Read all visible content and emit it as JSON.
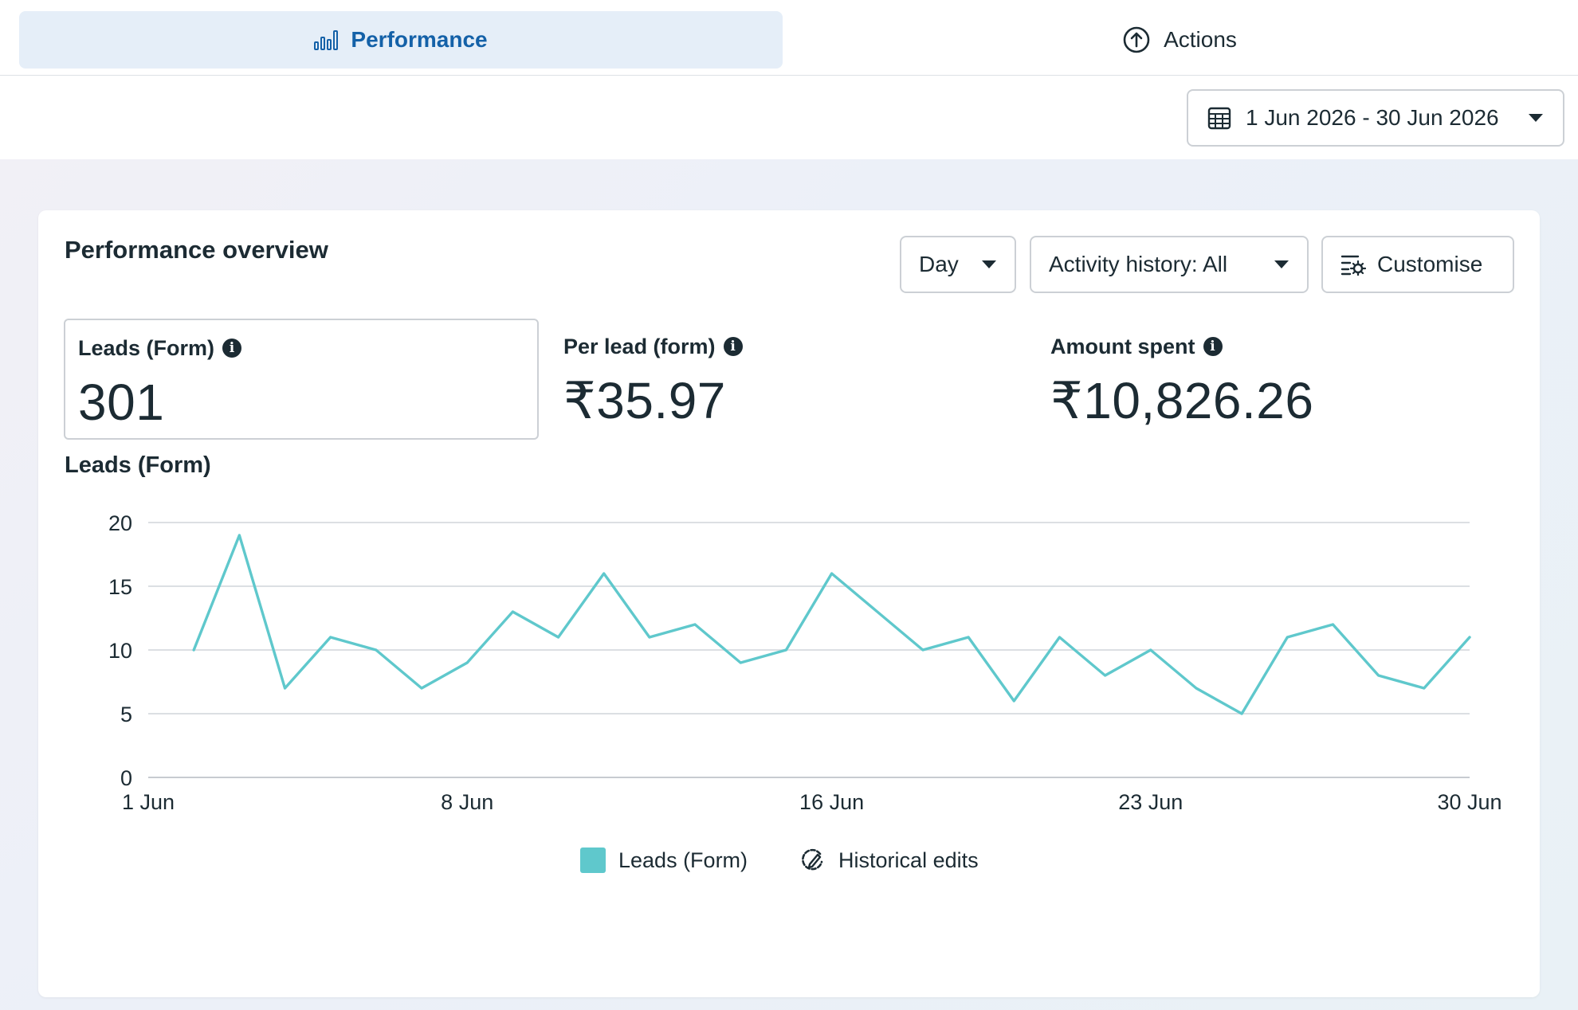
{
  "tabs": {
    "performance": "Performance",
    "actions": "Actions"
  },
  "date_range": {
    "label": "1 Jun 2026 - 30 Jun 2026"
  },
  "card": {
    "title": "Performance overview",
    "controls": {
      "day": "Day",
      "activity": "Activity history: All",
      "customise": "Customise"
    },
    "metrics": [
      {
        "label": "Leads (Form)",
        "value": "301"
      },
      {
        "label": "Per lead (form)",
        "value": "₹35.97"
      },
      {
        "label": "Amount spent",
        "value": "₹10,826.26"
      }
    ],
    "chart_title": "Leads (Form)",
    "legend": {
      "series": "Leads (Form)",
      "edits": "Historical edits"
    }
  },
  "colors": {
    "accent": "#1461a8",
    "active_tab_bg": "#e5eef8",
    "series": "#5fc8cc"
  },
  "chart_data": {
    "type": "line",
    "title": "Leads (Form)",
    "xlabel": "",
    "ylabel": "",
    "ylim": [
      0,
      20
    ],
    "yticks": [
      0,
      5,
      10,
      15,
      20
    ],
    "xticks": [
      {
        "day": 1,
        "label": "1 Jun"
      },
      {
        "day": 8,
        "label": "8 Jun"
      },
      {
        "day": 16,
        "label": "16 Jun"
      },
      {
        "day": 23,
        "label": "23 Jun"
      },
      {
        "day": 30,
        "label": "30 Jun"
      }
    ],
    "grid": true,
    "legend": "bottom",
    "series": [
      {
        "name": "Leads (Form)",
        "x": [
          2,
          3,
          4,
          5,
          6,
          7,
          8,
          9,
          10,
          11,
          12,
          13,
          14,
          15,
          16,
          17,
          18,
          19,
          20,
          21,
          22,
          23,
          24,
          25,
          26,
          27,
          28,
          29,
          30
        ],
        "values": [
          10,
          19,
          7,
          11,
          10,
          7,
          9,
          13,
          11,
          16,
          11,
          12,
          9,
          10,
          16,
          13,
          10,
          11,
          6,
          11,
          8,
          10,
          7,
          5,
          11,
          12,
          8,
          7,
          11
        ]
      }
    ]
  }
}
